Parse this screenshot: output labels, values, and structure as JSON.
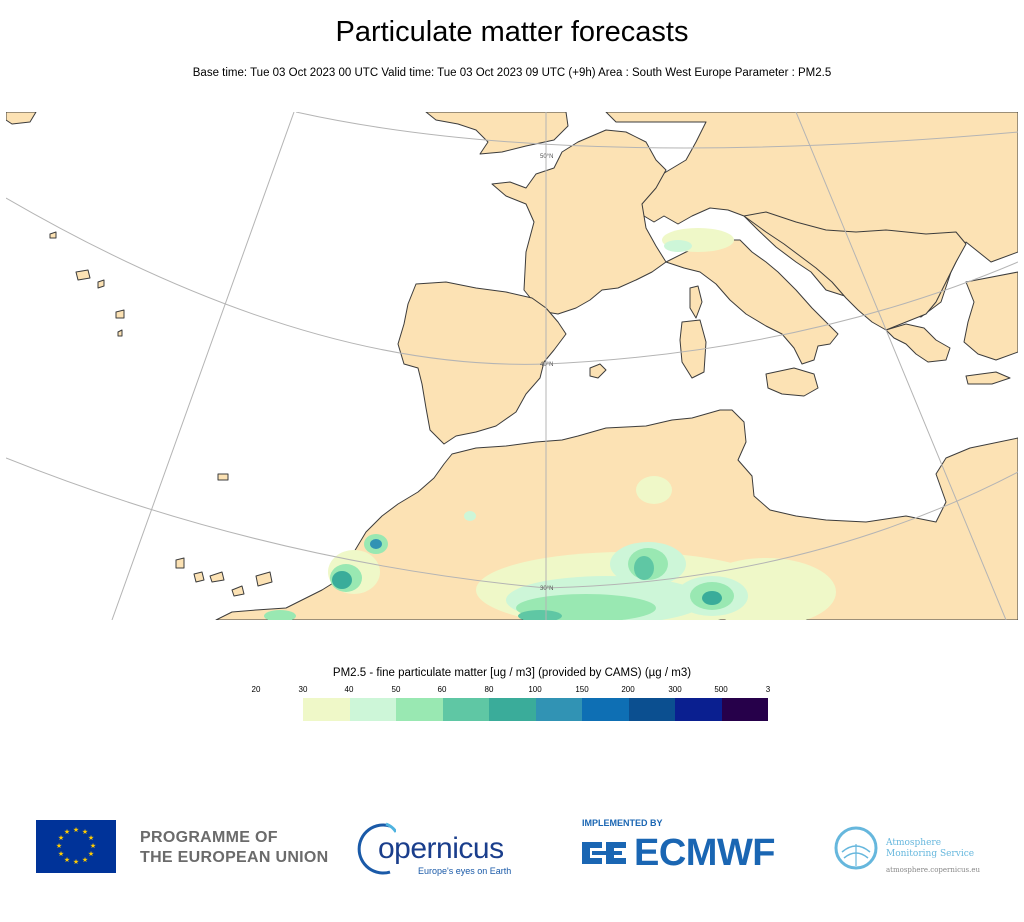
{
  "header": {
    "title": "Particulate matter forecasts",
    "subtitle": "Base time: Tue 03 Oct 2023 00 UTC Valid time: Tue 03 Oct 2023 09 UTC (+9h) Area : South West Europe Parameter : PM2.5"
  },
  "map": {
    "region": "South West Europe",
    "parallel_labels": [
      "50°N",
      "40°N",
      "30°N"
    ],
    "colors": {
      "land": "#fce2b4",
      "sea": "#ffffff",
      "coast": "#3c3c3c",
      "grid": "#b4b4b4"
    }
  },
  "legend": {
    "title": "PM2.5 - fine particulate matter [ug / m3] (provided by CAMS) (µg / m3)",
    "ticks": [
      "20",
      "30",
      "40",
      "50",
      "60",
      "80",
      "100",
      "150",
      "200",
      "300",
      "500",
      "3"
    ],
    "colors": [
      "#eff8c8",
      "#cdf6d8",
      "#99e8b2",
      "#5fc7a4",
      "#3aac9a",
      "#3193b4",
      "#0e6fb4",
      "#0b4f90",
      "#0a1f90",
      "#26004a"
    ]
  },
  "footer": {
    "eu_line1": "PROGRAMME OF",
    "eu_line2": "THE EUROPEAN UNION",
    "copernicus_name": "opernicus",
    "copernicus_tagline": "Europe's eyes on Earth",
    "ecmwf_implemented": "IMPLEMENTED BY",
    "ecmwf_name": "ECMWF",
    "ams_line1": "Atmosphere",
    "ams_line2": "Monitoring Service",
    "ams_url": "atmosphere.copernicus.eu"
  }
}
